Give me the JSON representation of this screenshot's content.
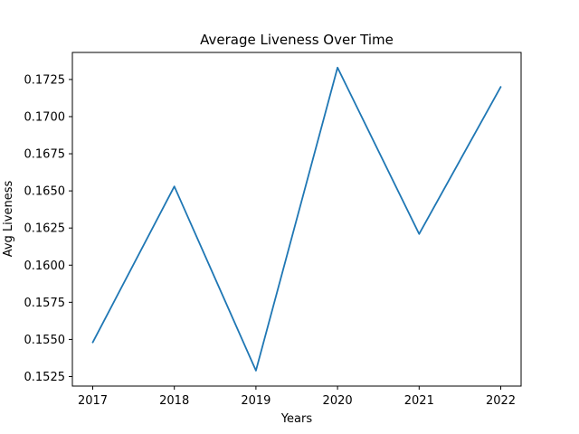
{
  "chart_data": {
    "type": "line",
    "title": "Average Liveness Over Time",
    "xlabel": "Years",
    "ylabel": "Avg Liveness",
    "categories": [
      "2017",
      "2018",
      "2019",
      "2020",
      "2021",
      "2022"
    ],
    "series": [
      {
        "values": [
          0.1548,
          0.1653,
          0.1529,
          0.1733,
          0.1621,
          0.172
        ],
        "color": "#1f77b4"
      }
    ],
    "y_ticks": [
      "0.1525",
      "0.1550",
      "0.1575",
      "0.1600",
      "0.1625",
      "0.1650",
      "0.1675",
      "0.1700",
      "0.1725"
    ],
    "ylim": [
      0.15186,
      0.17432
    ],
    "grid": false,
    "legend": "none"
  }
}
